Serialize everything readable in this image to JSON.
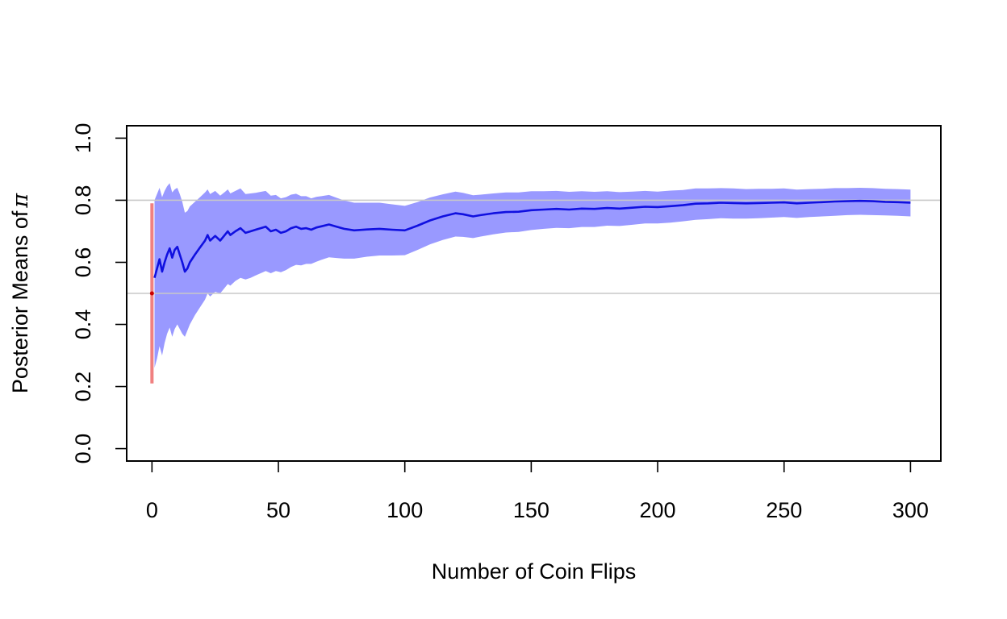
{
  "chart_data": {
    "type": "line",
    "xlabel": "Number of Coin Flips",
    "ylabel": "Posterior Means of",
    "ylabel_symbol": "π",
    "xlim": [
      -10,
      312
    ],
    "ylim": [
      -0.04,
      1.04
    ],
    "x_ticks": [
      0,
      50,
      100,
      150,
      200,
      250,
      300
    ],
    "x_tick_labels": [
      "0",
      "50",
      "100",
      "150",
      "200",
      "250",
      "300"
    ],
    "y_ticks": [
      0.0,
      0.2,
      0.4,
      0.6,
      0.8,
      1.0
    ],
    "y_tick_labels": [
      "0.0",
      "0.2",
      "0.4",
      "0.6",
      "0.8",
      "1.0"
    ],
    "reference_lines": [
      0.5,
      0.8
    ],
    "prior": {
      "x": 0,
      "mean": 0.5,
      "lower": 0.21,
      "upper": 0.79
    },
    "x": [
      1,
      2,
      3,
      4,
      5,
      6,
      7,
      8,
      9,
      10,
      11,
      12,
      13,
      14,
      15,
      17,
      19,
      21,
      22,
      23,
      25,
      27,
      29,
      30,
      31,
      33,
      35,
      37,
      39,
      41,
      43,
      45,
      47,
      49,
      51,
      53,
      55,
      57,
      59,
      61,
      63,
      65,
      67,
      70,
      73,
      76,
      80,
      85,
      90,
      95,
      100,
      105,
      110,
      115,
      120,
      123,
      127,
      130,
      135,
      140,
      145,
      150,
      155,
      160,
      165,
      170,
      175,
      180,
      185,
      190,
      195,
      200,
      205,
      210,
      215,
      220,
      225,
      230,
      235,
      240,
      245,
      250,
      255,
      260,
      265,
      270,
      275,
      280,
      285,
      290,
      295,
      300
    ],
    "series": [
      {
        "values": [
          0.55,
          0.58,
          0.61,
          0.57,
          0.6,
          0.625,
          0.645,
          0.615,
          0.64,
          0.65,
          0.625,
          0.6,
          0.57,
          0.58,
          0.6,
          0.625,
          0.648,
          0.67,
          0.688,
          0.67,
          0.685,
          0.67,
          0.69,
          0.7,
          0.688,
          0.7,
          0.71,
          0.695,
          0.7,
          0.705,
          0.71,
          0.715,
          0.7,
          0.705,
          0.695,
          0.7,
          0.71,
          0.715,
          0.708,
          0.71,
          0.705,
          0.712,
          0.716,
          0.722,
          0.715,
          0.708,
          0.703,
          0.706,
          0.708,
          0.705,
          0.703,
          0.718,
          0.735,
          0.748,
          0.758,
          0.755,
          0.748,
          0.752,
          0.758,
          0.762,
          0.763,
          0.768,
          0.77,
          0.772,
          0.77,
          0.773,
          0.772,
          0.775,
          0.773,
          0.776,
          0.779,
          0.778,
          0.781,
          0.784,
          0.789,
          0.79,
          0.792,
          0.791,
          0.79,
          0.791,
          0.792,
          0.793,
          0.79,
          0.792,
          0.794,
          0.796,
          0.797,
          0.798,
          0.797,
          0.795,
          0.794,
          0.792
        ]
      },
      {
        "values": [
          0.26,
          0.29,
          0.33,
          0.3,
          0.34,
          0.37,
          0.39,
          0.36,
          0.385,
          0.4,
          0.385,
          0.37,
          0.36,
          0.38,
          0.4,
          0.43,
          0.455,
          0.48,
          0.5,
          0.49,
          0.505,
          0.5,
          0.52,
          0.53,
          0.525,
          0.54,
          0.55,
          0.545,
          0.55,
          0.558,
          0.565,
          0.572,
          0.565,
          0.572,
          0.568,
          0.575,
          0.585,
          0.592,
          0.59,
          0.595,
          0.595,
          0.602,
          0.608,
          0.616,
          0.614,
          0.612,
          0.612,
          0.618,
          0.622,
          0.622,
          0.623,
          0.64,
          0.658,
          0.672,
          0.683,
          0.682,
          0.678,
          0.683,
          0.69,
          0.696,
          0.698,
          0.704,
          0.708,
          0.711,
          0.71,
          0.714,
          0.714,
          0.718,
          0.717,
          0.721,
          0.725,
          0.725,
          0.728,
          0.732,
          0.737,
          0.739,
          0.742,
          0.741,
          0.741,
          0.742,
          0.744,
          0.746,
          0.743,
          0.746,
          0.748,
          0.75,
          0.752,
          0.753,
          0.752,
          0.751,
          0.75,
          0.748
        ]
      },
      {
        "values": [
          0.8,
          0.82,
          0.84,
          0.81,
          0.83,
          0.845,
          0.855,
          0.825,
          0.835,
          0.84,
          0.82,
          0.795,
          0.76,
          0.765,
          0.78,
          0.795,
          0.81,
          0.825,
          0.835,
          0.82,
          0.83,
          0.815,
          0.828,
          0.835,
          0.822,
          0.83,
          0.838,
          0.82,
          0.822,
          0.824,
          0.827,
          0.83,
          0.815,
          0.817,
          0.806,
          0.81,
          0.818,
          0.821,
          0.813,
          0.813,
          0.806,
          0.811,
          0.813,
          0.817,
          0.808,
          0.799,
          0.792,
          0.792,
          0.792,
          0.787,
          0.782,
          0.794,
          0.809,
          0.819,
          0.828,
          0.824,
          0.816,
          0.818,
          0.822,
          0.825,
          0.825,
          0.829,
          0.829,
          0.83,
          0.827,
          0.829,
          0.827,
          0.829,
          0.826,
          0.828,
          0.83,
          0.828,
          0.831,
          0.833,
          0.838,
          0.838,
          0.839,
          0.838,
          0.836,
          0.837,
          0.837,
          0.838,
          0.834,
          0.836,
          0.837,
          0.839,
          0.839,
          0.84,
          0.839,
          0.837,
          0.836,
          0.834
        ]
      }
    ],
    "grid": false,
    "legend": "none",
    "colors": {
      "mean_line": "#1010e0",
      "band_fill": "#9999ff",
      "prior_bar": "#f08080",
      "prior_point": "#cc0000",
      "reference_line": "#c8c8c8",
      "axis": "#000000"
    }
  }
}
